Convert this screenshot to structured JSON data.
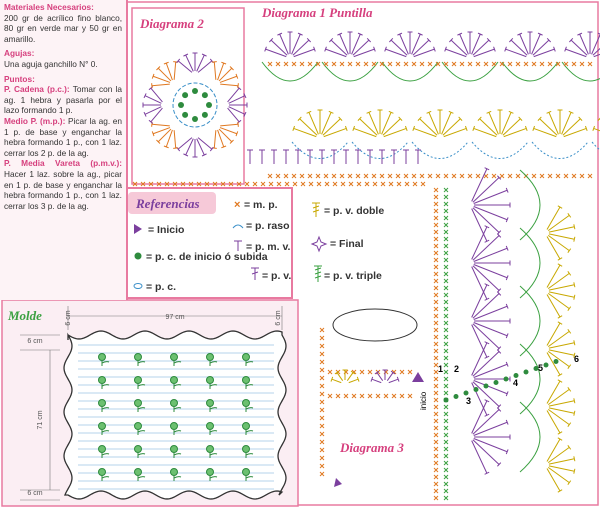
{
  "materials": {
    "title": "Materiales Necesarios:",
    "text": "200 gr de acrílico fino blanco, 80 gr en verde mar y 50 gr en amarillo."
  },
  "needles": {
    "title": "Agujas:",
    "text": "Una aguja ganchillo N° 0."
  },
  "stitches": {
    "title": "Puntos:",
    "items": [
      {
        "name": "P. Cadena (p.c.):",
        "text": "Tomar con la ag. 1 hebra y pasarla por el lazo formando 1 p."
      },
      {
        "name": "Medio P. (m.p.):",
        "text": "Picar la ag. en 1 p. de base y enganchar la hebra formando 1 p., con 1 laz. cerrar los 2 p. de la ag."
      },
      {
        "name": "P. Media Vareta (p.m.v.):",
        "text": "Hacer 1 laz. sobre la ag., picar en 1 p. de base y enganchar la hebra formando 1 p., con 1 laz. cerrar los 3 p. de la ag."
      }
    ]
  },
  "diagrams": {
    "d1": "Diagrama 1 Puntilla",
    "d2": "Diagrama 2",
    "d3": "Diagrama 3"
  },
  "references": {
    "title": "Referencias",
    "items": [
      "= Inicio",
      "= p. c. de inicio ó subida",
      "= p. c.",
      "= m. p.",
      "= p. raso",
      "= p. m. v.",
      "= p. v.",
      "= p. v. doble",
      "= Final",
      "= p. v. triple"
    ]
  },
  "diagram3_labels": [
    "1",
    "2",
    "3",
    "4",
    "5",
    "6",
    "inicio"
  ],
  "molde": {
    "title": "Molde",
    "width": "97 cm",
    "height": "71 cm",
    "margins": [
      "6 cm",
      "6 cm",
      "6 cm",
      "6 cm"
    ]
  }
}
